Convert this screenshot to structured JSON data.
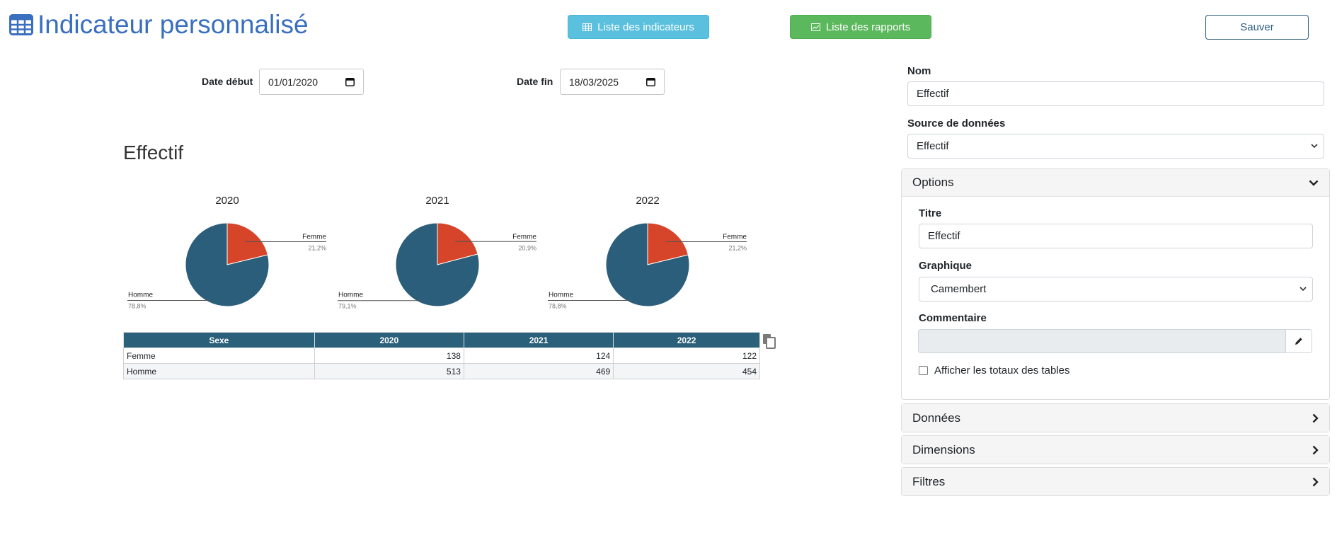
{
  "header": {
    "title": "Indicateur personnalisé",
    "btn_indicators": "Liste des indicateurs",
    "btn_reports": "Liste des rapports",
    "btn_save": "Sauver"
  },
  "dates": {
    "start_label": "Date début",
    "start_value": "01/01/2020",
    "end_label": "Date fin",
    "end_value": "18/03/2025"
  },
  "chart_title": "Effectif",
  "chart_data": [
    {
      "type": "pie",
      "title": "2020",
      "categories": [
        "Femme",
        "Homme"
      ],
      "values": [
        21.2,
        78.8
      ],
      "labels": [
        "21,2%",
        "78,8%"
      ],
      "colors": [
        "#d6452a",
        "#2b5e7a"
      ]
    },
    {
      "type": "pie",
      "title": "2021",
      "categories": [
        "Femme",
        "Homme"
      ],
      "values": [
        20.9,
        79.1
      ],
      "labels": [
        "20,9%",
        "79,1%"
      ],
      "colors": [
        "#d6452a",
        "#2b5e7a"
      ]
    },
    {
      "type": "pie",
      "title": "2022",
      "categories": [
        "Femme",
        "Homme"
      ],
      "values": [
        21.2,
        78.8
      ],
      "labels": [
        "21,2%",
        "78,8%"
      ],
      "colors": [
        "#d6452a",
        "#2b5e7a"
      ]
    },
    {
      "type": "table",
      "columns": [
        "Sexe",
        "2020",
        "2021",
        "2022"
      ],
      "rows": [
        [
          "Femme",
          "138",
          "124",
          "122"
        ],
        [
          "Homme",
          "513",
          "469",
          "454"
        ]
      ]
    }
  ],
  "form": {
    "nom_label": "Nom",
    "nom_value": "Effectif",
    "source_label": "Source de données",
    "source_value": "Effectif"
  },
  "options": {
    "header": "Options",
    "titre_label": "Titre",
    "titre_value": "Effectif",
    "graphique_label": "Graphique",
    "graphique_value": "Camembert",
    "commentaire_label": "Commentaire",
    "totaux_label": "Afficher les totaux des tables"
  },
  "panels": {
    "donnees": "Données",
    "dimensions": "Dimensions",
    "filtres": "Filtres"
  },
  "colors": {
    "title_blue": "#3a6fbf",
    "info": "#5bc0de",
    "success": "#5cb85c",
    "navy": "#2b607a",
    "femme": "#d6452a",
    "homme": "#2b5e7a"
  }
}
